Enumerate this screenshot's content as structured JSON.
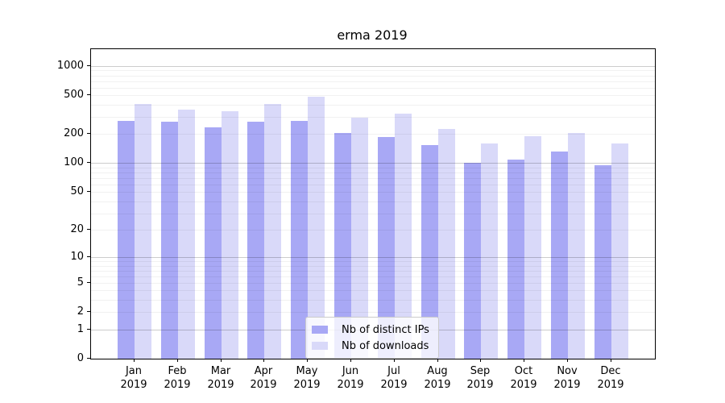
{
  "chart_data": {
    "type": "bar",
    "title": "erma 2019",
    "categories": [
      "Jan",
      "Feb",
      "Mar",
      "Apr",
      "May",
      "Jun",
      "Jul",
      "Aug",
      "Sep",
      "Oct",
      "Nov",
      "Dec"
    ],
    "year_label": "2019",
    "series": [
      {
        "name": "Nb of distinct IPs",
        "color": "#a8a8f5",
        "values": [
          274,
          268,
          236,
          266,
          274,
          207,
          188,
          153,
          101,
          109,
          132,
          96
        ]
      },
      {
        "name": "Nb of downloads",
        "color": "#d9d9f9",
        "values": [
          410,
          355,
          343,
          405,
          488,
          295,
          326,
          226,
          160,
          190,
          206,
          161
        ]
      }
    ],
    "y_axis": {
      "scale": "log1p",
      "ticks": [
        0,
        1,
        2,
        5,
        10,
        20,
        50,
        100,
        200,
        500,
        1000
      ],
      "ylim": [
        0,
        1490
      ]
    },
    "gridlines": {
      "major": [
        1,
        10,
        100,
        1000
      ],
      "minor": [
        2,
        3,
        4,
        5,
        6,
        7,
        8,
        9,
        20,
        30,
        40,
        50,
        60,
        70,
        80,
        90,
        200,
        300,
        400,
        500,
        600,
        700,
        800,
        900
      ]
    },
    "legend": {
      "position": "lower center"
    },
    "colors": {
      "distinct_ips_bar": "#a8a8f5",
      "downloads_bar": "#d9d9f9",
      "axis": "#000000",
      "major_grid": "#cccccc",
      "minor_grid": "#f1f1f1",
      "background": "#ffffff"
    }
  }
}
